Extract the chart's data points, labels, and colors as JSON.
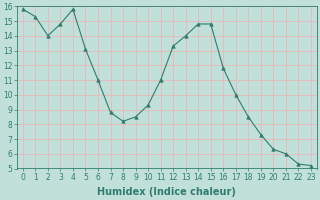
{
  "xlabel": "Humidex (Indice chaleur)",
  "x_values": [
    0,
    1,
    2,
    3,
    4,
    5,
    6,
    7,
    8,
    9,
    10,
    11,
    12,
    13,
    14,
    15,
    16,
    17,
    18,
    19,
    20,
    21,
    22,
    23
  ],
  "y_values": [
    15.8,
    15.3,
    14.0,
    14.8,
    15.8,
    13.1,
    11.0,
    8.8,
    8.2,
    8.5,
    9.3,
    11.0,
    13.3,
    14.0,
    14.8,
    14.8,
    11.8,
    10.0,
    8.5,
    7.3,
    6.3,
    6.0,
    5.3,
    5.2
  ],
  "line_color": "#2e7d6e",
  "marker": "^",
  "marker_size": 2.5,
  "bg_color": "#c2e0da",
  "grid_color": "#aed4cc",
  "grid_major_color": "#e8b8b8",
  "ylim": [
    5,
    16
  ],
  "yticks": [
    5,
    6,
    7,
    8,
    9,
    10,
    11,
    12,
    13,
    14,
    15,
    16
  ],
  "xticks": [
    0,
    1,
    2,
    3,
    4,
    5,
    6,
    7,
    8,
    9,
    10,
    11,
    12,
    13,
    14,
    15,
    16,
    17,
    18,
    19,
    20,
    21,
    22,
    23
  ],
  "tick_label_fontsize": 5.5,
  "xlabel_fontsize": 7
}
